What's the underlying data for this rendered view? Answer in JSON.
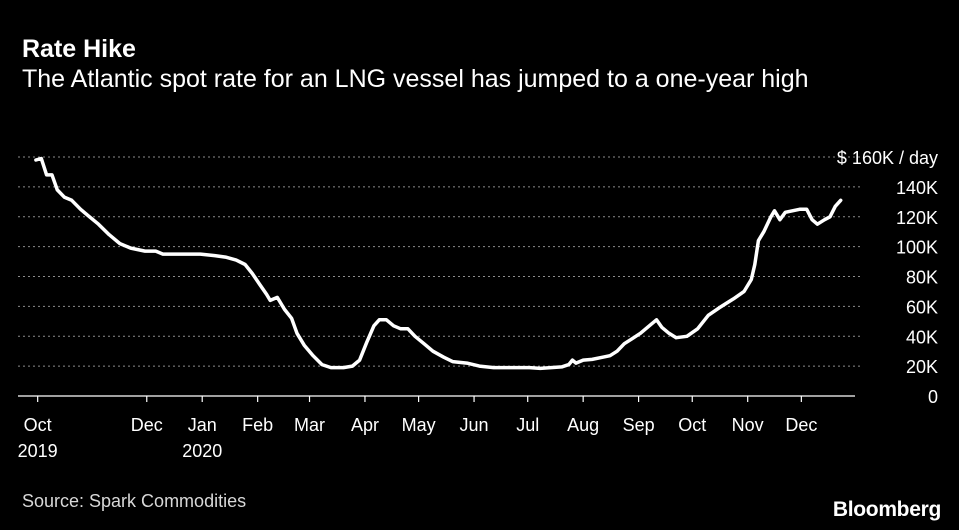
{
  "header": {
    "title": "Rate Hike",
    "subtitle": "The Atlantic spot rate for an LNG vessel has jumped to a one-year high"
  },
  "footer": {
    "source": "Source: Spark Commodities",
    "brand": "Bloomberg"
  },
  "colors": {
    "background": "#000000",
    "line": "#ffffff",
    "grid": "#8c8c8c",
    "text": "#ffffff"
  },
  "chart_data": {
    "type": "line",
    "title": "Rate Hike",
    "subtitle": "The Atlantic spot rate for an LNG vessel has jumped to a one-year high",
    "y_unit_label": "$ 160K / day",
    "ylim": [
      0,
      160000
    ],
    "y_ticks": [
      {
        "value": 160000,
        "label": "$ 160K / day"
      },
      {
        "value": 140000,
        "label": "140K"
      },
      {
        "value": 120000,
        "label": "120K"
      },
      {
        "value": 100000,
        "label": "100K"
      },
      {
        "value": 80000,
        "label": "80K"
      },
      {
        "value": 60000,
        "label": "60K"
      },
      {
        "value": 40000,
        "label": "40K"
      },
      {
        "value": 20000,
        "label": "20K"
      },
      {
        "value": 0,
        "label": "0"
      }
    ],
    "xlim": [
      "2019-09-20",
      "2020-12-31"
    ],
    "x_ticks": [
      {
        "date": "2019-10-01",
        "label": "Oct",
        "sublabel": "2019"
      },
      {
        "date": "2019-12-01",
        "label": "Dec",
        "sublabel": ""
      },
      {
        "date": "2020-01-01",
        "label": "Jan",
        "sublabel": "2020"
      },
      {
        "date": "2020-02-01",
        "label": "Feb",
        "sublabel": ""
      },
      {
        "date": "2020-03-01",
        "label": "Mar",
        "sublabel": ""
      },
      {
        "date": "2020-04-01",
        "label": "Apr",
        "sublabel": ""
      },
      {
        "date": "2020-05-01",
        "label": "May",
        "sublabel": ""
      },
      {
        "date": "2020-06-01",
        "label": "Jun",
        "sublabel": ""
      },
      {
        "date": "2020-07-01",
        "label": "Jul",
        "sublabel": ""
      },
      {
        "date": "2020-08-01",
        "label": "Aug",
        "sublabel": ""
      },
      {
        "date": "2020-09-01",
        "label": "Sep",
        "sublabel": ""
      },
      {
        "date": "2020-10-01",
        "label": "Oct",
        "sublabel": ""
      },
      {
        "date": "2020-11-01",
        "label": "Nov",
        "sublabel": ""
      },
      {
        "date": "2020-12-01",
        "label": "Dec",
        "sublabel": ""
      }
    ],
    "grid": true,
    "series": [
      {
        "points": [
          [
            "2019-09-30",
            158000
          ],
          [
            "2019-10-03",
            159000
          ],
          [
            "2019-10-06",
            148000
          ],
          [
            "2019-10-09",
            148000
          ],
          [
            "2019-10-12",
            138000
          ],
          [
            "2019-10-16",
            133000
          ],
          [
            "2019-10-20",
            131000
          ],
          [
            "2019-10-25",
            125000
          ],
          [
            "2019-10-30",
            120000
          ],
          [
            "2019-11-04",
            115000
          ],
          [
            "2019-11-10",
            108000
          ],
          [
            "2019-11-16",
            102000
          ],
          [
            "2019-11-22",
            99000
          ],
          [
            "2019-11-30",
            97000
          ],
          [
            "2019-12-06",
            97000
          ],
          [
            "2019-12-10",
            95000
          ],
          [
            "2019-12-20",
            95000
          ],
          [
            "2019-12-31",
            95000
          ],
          [
            "2020-01-08",
            94000
          ],
          [
            "2020-01-14",
            93000
          ],
          [
            "2020-01-20",
            91000
          ],
          [
            "2020-01-25",
            88000
          ],
          [
            "2020-01-29",
            82000
          ],
          [
            "2020-02-02",
            75000
          ],
          [
            "2020-02-06",
            68000
          ],
          [
            "2020-02-08",
            64000
          ],
          [
            "2020-02-12",
            66000
          ],
          [
            "2020-02-16",
            58000
          ],
          [
            "2020-02-20",
            52000
          ],
          [
            "2020-02-23",
            42000
          ],
          [
            "2020-02-27",
            34000
          ],
          [
            "2020-03-03",
            27000
          ],
          [
            "2020-03-08",
            21000
          ],
          [
            "2020-03-13",
            19000
          ],
          [
            "2020-03-20",
            19000
          ],
          [
            "2020-03-25",
            20000
          ],
          [
            "2020-03-29",
            24000
          ],
          [
            "2020-04-02",
            36000
          ],
          [
            "2020-04-06",
            47000
          ],
          [
            "2020-04-09",
            51000
          ],
          [
            "2020-04-13",
            51000
          ],
          [
            "2020-04-17",
            47000
          ],
          [
            "2020-04-21",
            45000
          ],
          [
            "2020-04-25",
            45000
          ],
          [
            "2020-04-29",
            40000
          ],
          [
            "2020-05-04",
            35000
          ],
          [
            "2020-05-09",
            30000
          ],
          [
            "2020-05-15",
            26000
          ],
          [
            "2020-05-20",
            23000
          ],
          [
            "2020-05-28",
            22000
          ],
          [
            "2020-06-04",
            20000
          ],
          [
            "2020-06-12",
            19000
          ],
          [
            "2020-06-20",
            19000
          ],
          [
            "2020-06-28",
            19000
          ],
          [
            "2020-07-02",
            19000
          ],
          [
            "2020-07-08",
            18500
          ],
          [
            "2020-07-14",
            19000
          ],
          [
            "2020-07-20",
            19500
          ],
          [
            "2020-07-24",
            21000
          ],
          [
            "2020-07-26",
            24000
          ],
          [
            "2020-07-28",
            22000
          ],
          [
            "2020-08-01",
            24000
          ],
          [
            "2020-08-06",
            24500
          ],
          [
            "2020-08-12",
            26000
          ],
          [
            "2020-08-16",
            27000
          ],
          [
            "2020-08-20",
            30000
          ],
          [
            "2020-08-24",
            35000
          ],
          [
            "2020-08-28",
            38000
          ],
          [
            "2020-09-02",
            42000
          ],
          [
            "2020-09-08",
            48000
          ],
          [
            "2020-09-11",
            51000
          ],
          [
            "2020-09-14",
            46000
          ],
          [
            "2020-09-18",
            42000
          ],
          [
            "2020-09-22",
            39000
          ],
          [
            "2020-09-28",
            40000
          ],
          [
            "2020-10-04",
            45000
          ],
          [
            "2020-10-10",
            54000
          ],
          [
            "2020-10-16",
            59000
          ],
          [
            "2020-10-20",
            62000
          ],
          [
            "2020-10-24",
            65000
          ],
          [
            "2020-10-30",
            70000
          ],
          [
            "2020-11-03",
            78000
          ],
          [
            "2020-11-05",
            88000
          ],
          [
            "2020-11-07",
            104000
          ],
          [
            "2020-11-10",
            110000
          ],
          [
            "2020-11-14",
            120000
          ],
          [
            "2020-11-16",
            124000
          ],
          [
            "2020-11-19",
            118000
          ],
          [
            "2020-11-22",
            123000
          ],
          [
            "2020-11-26",
            124000
          ],
          [
            "2020-11-30",
            125000
          ],
          [
            "2020-12-04",
            125000
          ],
          [
            "2020-12-07",
            118000
          ],
          [
            "2020-12-10",
            115000
          ],
          [
            "2020-12-14",
            118000
          ],
          [
            "2020-12-17",
            120000
          ],
          [
            "2020-12-20",
            127000
          ],
          [
            "2020-12-23",
            131000
          ]
        ]
      }
    ]
  }
}
